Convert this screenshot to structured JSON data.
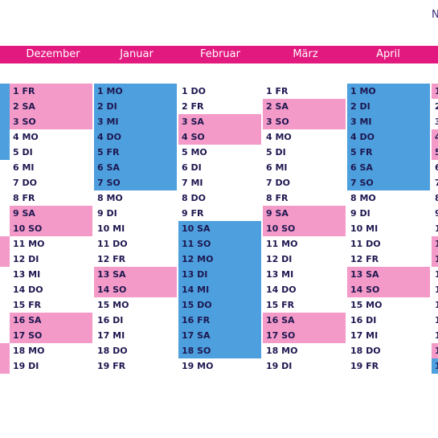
{
  "corner_text": "N",
  "colors": {
    "header": "#e2197f",
    "weekend": "#f49ac8",
    "holiday": "#4d9fde",
    "text": "#1e1850"
  },
  "months": [
    {
      "label": "Dezember",
      "days": [
        {
          "text": "1 FR",
          "fill": "pink"
        },
        {
          "text": "2 SA",
          "fill": "pink"
        },
        {
          "text": "3 SO",
          "fill": "pink"
        },
        {
          "text": "4 MO",
          "fill": ""
        },
        {
          "text": "5 DI",
          "fill": ""
        },
        {
          "text": "6 MI",
          "fill": ""
        },
        {
          "text": "7 DO",
          "fill": ""
        },
        {
          "text": "8 FR",
          "fill": ""
        },
        {
          "text": "9 SA",
          "fill": "pink"
        },
        {
          "text": "10 SO",
          "fill": "pink"
        },
        {
          "text": "11 MO",
          "fill": ""
        },
        {
          "text": "12 DI",
          "fill": ""
        },
        {
          "text": "13 MI",
          "fill": ""
        },
        {
          "text": "14 DO",
          "fill": ""
        },
        {
          "text": "15 FR",
          "fill": ""
        },
        {
          "text": "16 SA",
          "fill": "pink"
        },
        {
          "text": "17 SO",
          "fill": "pink"
        },
        {
          "text": "18 MO",
          "fill": ""
        },
        {
          "text": "19 DI",
          "fill": ""
        }
      ]
    },
    {
      "label": "Januar",
      "days": [
        {
          "text": "1 MO",
          "fill": "blue"
        },
        {
          "text": "2 DI",
          "fill": "blue"
        },
        {
          "text": "3 MI",
          "fill": "blue"
        },
        {
          "text": "4 DO",
          "fill": "blue"
        },
        {
          "text": "5 FR",
          "fill": "blue"
        },
        {
          "text": "6 SA",
          "fill": "blue"
        },
        {
          "text": "7 SO",
          "fill": "blue"
        },
        {
          "text": "8 MO",
          "fill": ""
        },
        {
          "text": "9 DI",
          "fill": ""
        },
        {
          "text": "10 MI",
          "fill": ""
        },
        {
          "text": "11 DO",
          "fill": ""
        },
        {
          "text": "12 FR",
          "fill": ""
        },
        {
          "text": "13 SA",
          "fill": "pink"
        },
        {
          "text": "14 SO",
          "fill": "pink"
        },
        {
          "text": "15 MO",
          "fill": ""
        },
        {
          "text": "16 DI",
          "fill": ""
        },
        {
          "text": "17 MI",
          "fill": ""
        },
        {
          "text": "18 DO",
          "fill": ""
        },
        {
          "text": "19 FR",
          "fill": ""
        }
      ]
    },
    {
      "label": "Februar",
      "days": [
        {
          "text": "1 DO",
          "fill": ""
        },
        {
          "text": "2 FR",
          "fill": ""
        },
        {
          "text": "3 SA",
          "fill": "pink"
        },
        {
          "text": "4 SO",
          "fill": "pink"
        },
        {
          "text": "5 MO",
          "fill": ""
        },
        {
          "text": "6 DI",
          "fill": ""
        },
        {
          "text": "7 MI",
          "fill": ""
        },
        {
          "text": "8 DO",
          "fill": ""
        },
        {
          "text": "9 FR",
          "fill": ""
        },
        {
          "text": "10 SA",
          "fill": "blue"
        },
        {
          "text": "11 SO",
          "fill": "blue"
        },
        {
          "text": "12 MO",
          "fill": "blue"
        },
        {
          "text": "13 DI",
          "fill": "blue"
        },
        {
          "text": "14 MI",
          "fill": "blue"
        },
        {
          "text": "15 DO",
          "fill": "blue"
        },
        {
          "text": "16 FR",
          "fill": "blue"
        },
        {
          "text": "17 SA",
          "fill": "blue"
        },
        {
          "text": "18 SO",
          "fill": "blue"
        },
        {
          "text": "19 MO",
          "fill": ""
        }
      ]
    },
    {
      "label": "März",
      "days": [
        {
          "text": "1 FR",
          "fill": ""
        },
        {
          "text": "2 SA",
          "fill": "pink"
        },
        {
          "text": "3 SO",
          "fill": "pink"
        },
        {
          "text": "4 MO",
          "fill": ""
        },
        {
          "text": "5 DI",
          "fill": ""
        },
        {
          "text": "6 MI",
          "fill": ""
        },
        {
          "text": "7 DO",
          "fill": ""
        },
        {
          "text": "8 FR",
          "fill": ""
        },
        {
          "text": "9 SA",
          "fill": "pink"
        },
        {
          "text": "10 SO",
          "fill": "pink"
        },
        {
          "text": "11 MO",
          "fill": ""
        },
        {
          "text": "12 DI",
          "fill": ""
        },
        {
          "text": "13 MI",
          "fill": ""
        },
        {
          "text": "14 DO",
          "fill": ""
        },
        {
          "text": "15 FR",
          "fill": ""
        },
        {
          "text": "16 SA",
          "fill": "pink"
        },
        {
          "text": "17 SO",
          "fill": "pink"
        },
        {
          "text": "18 MO",
          "fill": ""
        },
        {
          "text": "19 DI",
          "fill": ""
        }
      ]
    },
    {
      "label": "April",
      "days": [
        {
          "text": "1 MO",
          "fill": "blue"
        },
        {
          "text": "2 DI",
          "fill": "blue"
        },
        {
          "text": "3 MI",
          "fill": "blue"
        },
        {
          "text": "4 DO",
          "fill": "blue"
        },
        {
          "text": "5 FR",
          "fill": "blue"
        },
        {
          "text": "6 SA",
          "fill": "blue"
        },
        {
          "text": "7 SO",
          "fill": "blue"
        },
        {
          "text": "8 MO",
          "fill": ""
        },
        {
          "text": "9 DI",
          "fill": ""
        },
        {
          "text": "10 MI",
          "fill": ""
        },
        {
          "text": "11 DO",
          "fill": ""
        },
        {
          "text": "12 FR",
          "fill": ""
        },
        {
          "text": "13 SA",
          "fill": "pink"
        },
        {
          "text": "14 SO",
          "fill": "pink"
        },
        {
          "text": "15 MO",
          "fill": ""
        },
        {
          "text": "16 DI",
          "fill": ""
        },
        {
          "text": "17 MI",
          "fill": ""
        },
        {
          "text": "18 DO",
          "fill": ""
        },
        {
          "text": "19 FR",
          "fill": ""
        }
      ]
    },
    {
      "label": "",
      "days": [
        {
          "text": "1",
          "fill": "pink"
        },
        {
          "text": "2",
          "fill": ""
        },
        {
          "text": "3",
          "fill": ""
        },
        {
          "text": "4",
          "fill": "pink"
        },
        {
          "text": "5",
          "fill": "pink"
        },
        {
          "text": "6",
          "fill": ""
        },
        {
          "text": "7",
          "fill": ""
        },
        {
          "text": "8",
          "fill": ""
        },
        {
          "text": "9",
          "fill": ""
        },
        {
          "text": "1",
          "fill": ""
        },
        {
          "text": "1",
          "fill": "pink"
        },
        {
          "text": "1",
          "fill": "pink"
        },
        {
          "text": "1",
          "fill": ""
        },
        {
          "text": "1",
          "fill": ""
        },
        {
          "text": "1",
          "fill": ""
        },
        {
          "text": "1",
          "fill": ""
        },
        {
          "text": "1",
          "fill": ""
        },
        {
          "text": "1",
          "fill": "pink"
        },
        {
          "text": "1",
          "fill": "blue"
        }
      ]
    }
  ],
  "left_edge": [
    "blue",
    "blue",
    "blue",
    "blue",
    "blue",
    "",
    "",
    "",
    "",
    "",
    "pink",
    "pink",
    "",
    "",
    "",
    "",
    "",
    "pink",
    "pink"
  ]
}
